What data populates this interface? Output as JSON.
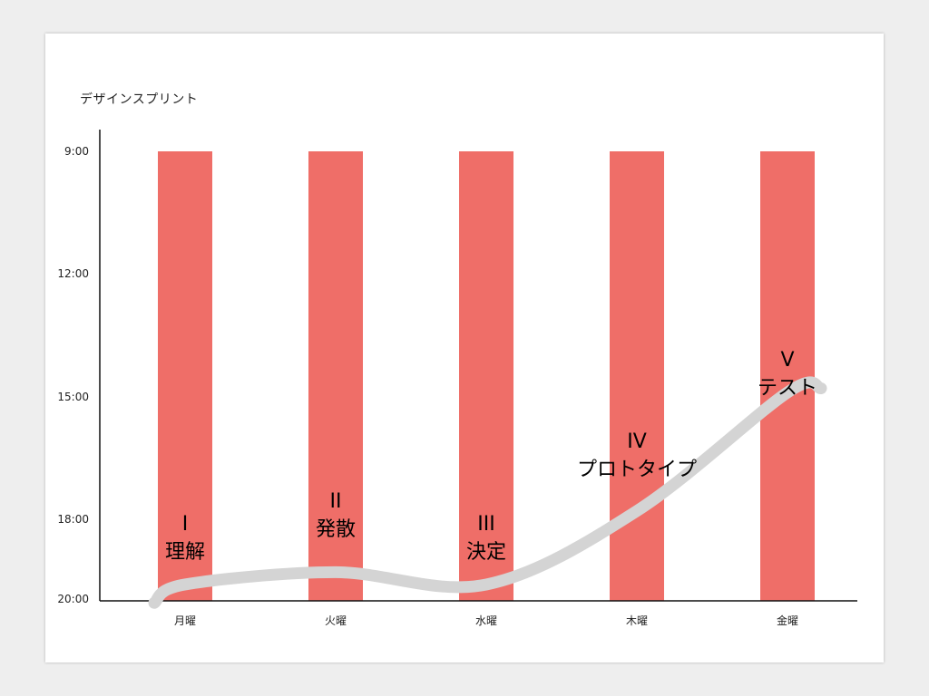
{
  "chart_data": {
    "type": "bar",
    "title": "デザインスプリント",
    "categories": [
      "月曜",
      "火曜",
      "水曜",
      "木曜",
      "金曜"
    ],
    "bars": [
      {
        "start": "9:00",
        "end": "20:00"
      },
      {
        "start": "9:00",
        "end": "20:00"
      },
      {
        "start": "9:00",
        "end": "20:00"
      },
      {
        "start": "9:00",
        "end": "20:00"
      },
      {
        "start": "9:00",
        "end": "20:00"
      }
    ],
    "y_ticks": [
      {
        "label": "9:00",
        "hour": 9
      },
      {
        "label": "12:00",
        "hour": 12
      },
      {
        "label": "15:00",
        "hour": 15
      },
      {
        "label": "18:00",
        "hour": 18
      },
      {
        "label": "20:00",
        "hour": 20
      }
    ],
    "ylim": [
      "9:00",
      "20:00"
    ],
    "bar_color": "#ef6e68",
    "curve_color": "#d4d4d4",
    "stages": [
      {
        "numeral": "I",
        "name": "理解",
        "day": "月曜",
        "level": 19.6
      },
      {
        "numeral": "II",
        "name": "発散",
        "day": "火曜",
        "level": 19.3
      },
      {
        "numeral": "III",
        "name": "決定",
        "day": "水曜",
        "level": 19.6
      },
      {
        "numeral": "IV",
        "name": "プロトタイプ",
        "day": "木曜",
        "level": 17.8
      },
      {
        "numeral": "V",
        "name": "テスト",
        "day": "金曜",
        "level": 14.9
      }
    ]
  }
}
